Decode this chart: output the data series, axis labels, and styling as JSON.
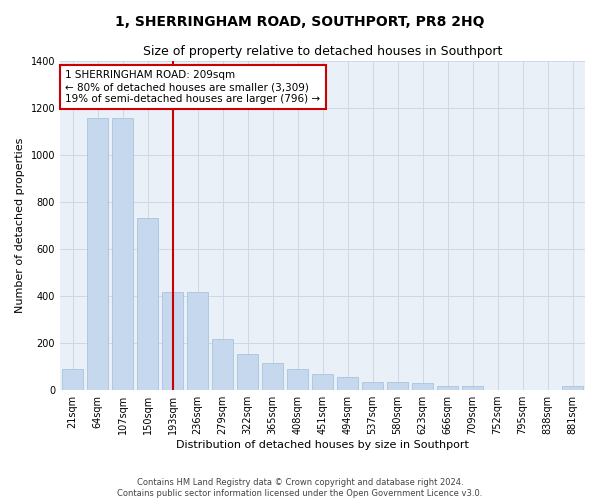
{
  "title": "1, SHERRINGHAM ROAD, SOUTHPORT, PR8 2HQ",
  "subtitle": "Size of property relative to detached houses in Southport",
  "xlabel": "Distribution of detached houses by size in Southport",
  "ylabel": "Number of detached properties",
  "categories": [
    "21sqm",
    "64sqm",
    "107sqm",
    "150sqm",
    "193sqm",
    "236sqm",
    "279sqm",
    "322sqm",
    "365sqm",
    "408sqm",
    "451sqm",
    "494sqm",
    "537sqm",
    "580sqm",
    "623sqm",
    "666sqm",
    "709sqm",
    "752sqm",
    "795sqm",
    "838sqm",
    "881sqm"
  ],
  "values": [
    90,
    1155,
    1155,
    730,
    415,
    415,
    215,
    155,
    115,
    90,
    70,
    55,
    35,
    35,
    30,
    18,
    18,
    0,
    0,
    0,
    18
  ],
  "bar_color": "#c5d8ed",
  "bar_edge_color": "#a0bed8",
  "vline_x": 4,
  "vline_color": "#cc0000",
  "annotation_text": "1 SHERRINGHAM ROAD: 209sqm\n← 80% of detached houses are smaller (3,309)\n19% of semi-detached houses are larger (796) →",
  "annotation_box_color": "white",
  "annotation_box_edge_color": "#cc0000",
  "ylim": [
    0,
    1400
  ],
  "yticks": [
    0,
    200,
    400,
    600,
    800,
    1000,
    1200,
    1400
  ],
  "grid_color": "#d0d8e8",
  "background_color": "#eaf0f8",
  "footer_line1": "Contains HM Land Registry data © Crown copyright and database right 2024.",
  "footer_line2": "Contains public sector information licensed under the Open Government Licence v3.0.",
  "title_fontsize": 10,
  "subtitle_fontsize": 9,
  "label_fontsize": 8,
  "tick_fontsize": 7,
  "footer_fontsize": 6
}
